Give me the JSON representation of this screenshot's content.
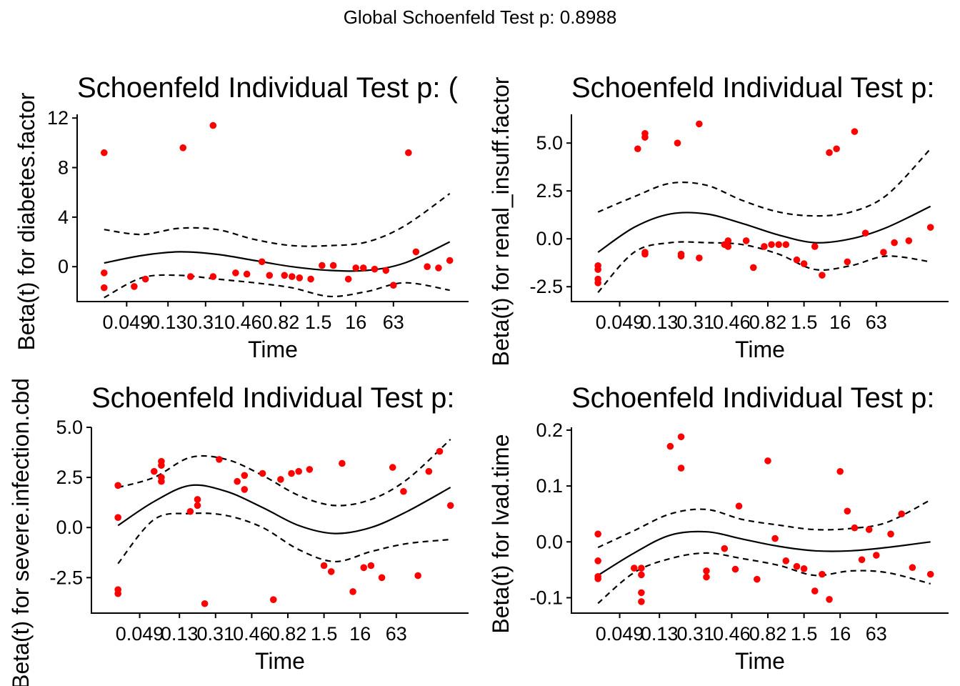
{
  "global_title": "Global Schoenfeld Test p: 0.8988",
  "colors": {
    "points": "#ff0000",
    "lines": "#000000",
    "background": "#ffffff"
  },
  "chart_data": [
    {
      "type": "scatter",
      "title": "Schoenfeld Individual Test p: (",
      "xlabel": "Time",
      "ylabel": "Beta(t) for diabetes.factor",
      "x_tick_labels": [
        "0.049",
        "0.13",
        "0.31",
        "0.46",
        "0.82",
        "1.5",
        "16",
        "63"
      ],
      "y_ticks": [
        0,
        4,
        8,
        12
      ],
      "y_tick_labels": [
        "0",
        "4",
        "8",
        "12"
      ],
      "ylim": [
        -2.7,
        12.3
      ],
      "points": [
        [
          0.3,
          9.2
        ],
        [
          0.3,
          -0.5
        ],
        [
          0.3,
          -1.7
        ],
        [
          1.1,
          -1.6
        ],
        [
          1.4,
          -1.0
        ],
        [
          2.4,
          9.6
        ],
        [
          2.6,
          -0.8
        ],
        [
          3.2,
          11.4
        ],
        [
          3.2,
          -0.8
        ],
        [
          3.8,
          -0.5
        ],
        [
          4.1,
          -0.6
        ],
        [
          4.5,
          0.4
        ],
        [
          4.7,
          -0.7
        ],
        [
          5.1,
          -0.7
        ],
        [
          5.3,
          -0.8
        ],
        [
          5.5,
          -0.9
        ],
        [
          5.8,
          -1.0
        ],
        [
          6.1,
          0.1
        ],
        [
          6.4,
          0.1
        ],
        [
          6.8,
          -1.0
        ],
        [
          7.0,
          -0.1
        ],
        [
          7.2,
          -0.1
        ],
        [
          7.5,
          -0.2
        ],
        [
          7.8,
          -0.3
        ],
        [
          8.0,
          -1.5
        ],
        [
          8.4,
          9.2
        ],
        [
          8.6,
          1.2
        ],
        [
          8.9,
          0.0
        ],
        [
          9.2,
          -0.1
        ],
        [
          9.5,
          0.5
        ]
      ],
      "fit": [
        [
          0.3,
          0.3
        ],
        [
          1.3,
          0.9
        ],
        [
          2.3,
          1.2
        ],
        [
          3.3,
          1.0
        ],
        [
          4.3,
          0.5
        ],
        [
          5.3,
          0.0
        ],
        [
          6.3,
          -0.3
        ],
        [
          7.3,
          -0.3
        ],
        [
          8.3,
          0.3
        ],
        [
          9.5,
          2.0
        ]
      ],
      "upper": [
        [
          0.3,
          3.0
        ],
        [
          1.3,
          2.6
        ],
        [
          2.3,
          3.1
        ],
        [
          3.3,
          3.0
        ],
        [
          4.3,
          2.2
        ],
        [
          5.3,
          1.7
        ],
        [
          6.3,
          1.7
        ],
        [
          7.3,
          2.0
        ],
        [
          8.3,
          3.3
        ],
        [
          9.5,
          5.9
        ]
      ],
      "lower": [
        [
          0.3,
          -2.5
        ],
        [
          1.3,
          -0.9
        ],
        [
          2.3,
          -0.7
        ],
        [
          3.3,
          -1.0
        ],
        [
          4.3,
          -1.3
        ],
        [
          5.3,
          -1.7
        ],
        [
          6.3,
          -2.4
        ],
        [
          7.3,
          -2.0
        ],
        [
          8.3,
          -1.3
        ],
        [
          9.5,
          -1.9
        ]
      ]
    },
    {
      "type": "scatter",
      "title": "Schoenfeld Individual Test p:",
      "xlabel": "Time",
      "ylabel": "Beta(t) for renal_insuff.factor",
      "x_tick_labels": [
        "0.049",
        "0.13",
        "0.31",
        "0.46",
        "0.82",
        "1.5",
        "16",
        "63"
      ],
      "y_ticks": [
        -2.5,
        0,
        2.5,
        5
      ],
      "y_tick_labels": [
        "-2.5",
        "0.0",
        "2.5",
        "5.0"
      ],
      "ylim": [
        -3.2,
        6.5
      ],
      "points": [
        [
          0.3,
          -1.4
        ],
        [
          0.3,
          -1.6
        ],
        [
          0.3,
          -2.1
        ],
        [
          0.3,
          -2.3
        ],
        [
          1.4,
          4.7
        ],
        [
          1.6,
          5.5
        ],
        [
          1.6,
          5.3
        ],
        [
          1.6,
          -0.7
        ],
        [
          1.6,
          -0.8
        ],
        [
          2.5,
          5.0
        ],
        [
          2.6,
          -0.8
        ],
        [
          2.6,
          -0.9
        ],
        [
          3.1,
          6.0
        ],
        [
          3.1,
          -1.0
        ],
        [
          3.8,
          -0.3
        ],
        [
          3.9,
          -0.1
        ],
        [
          3.9,
          -0.4
        ],
        [
          4.4,
          -0.1
        ],
        [
          4.6,
          -1.5
        ],
        [
          4.9,
          -0.4
        ],
        [
          5.1,
          -0.3
        ],
        [
          5.3,
          -0.3
        ],
        [
          5.5,
          -0.3
        ],
        [
          5.8,
          -1.1
        ],
        [
          6.0,
          -1.3
        ],
        [
          6.3,
          -0.4
        ],
        [
          6.5,
          -1.9
        ],
        [
          6.7,
          4.5
        ],
        [
          6.9,
          4.7
        ],
        [
          7.2,
          -1.2
        ],
        [
          7.4,
          5.6
        ],
        [
          7.7,
          0.3
        ],
        [
          8.2,
          -0.7
        ],
        [
          8.5,
          -0.2
        ],
        [
          8.9,
          -0.1
        ],
        [
          9.5,
          0.6
        ]
      ],
      "fit": [
        [
          0.3,
          -0.7
        ],
        [
          1.3,
          0.6
        ],
        [
          2.3,
          1.3
        ],
        [
          3.3,
          1.3
        ],
        [
          4.3,
          0.8
        ],
        [
          5.3,
          0.2
        ],
        [
          6.3,
          -0.2
        ],
        [
          7.3,
          0.0
        ],
        [
          8.3,
          0.6
        ],
        [
          9.5,
          1.7
        ]
      ],
      "upper": [
        [
          0.3,
          1.4
        ],
        [
          1.3,
          2.2
        ],
        [
          2.3,
          2.9
        ],
        [
          3.3,
          2.8
        ],
        [
          4.3,
          2.0
        ],
        [
          5.3,
          1.4
        ],
        [
          6.3,
          1.2
        ],
        [
          7.3,
          1.4
        ],
        [
          8.3,
          2.3
        ],
        [
          9.5,
          4.7
        ]
      ],
      "lower": [
        [
          0.3,
          -2.8
        ],
        [
          1.3,
          -0.7
        ],
        [
          2.3,
          -0.2
        ],
        [
          3.3,
          -0.2
        ],
        [
          4.3,
          -0.3
        ],
        [
          5.3,
          -0.8
        ],
        [
          6.3,
          -1.6
        ],
        [
          7.3,
          -1.4
        ],
        [
          8.3,
          -0.9
        ],
        [
          9.5,
          -1.2
        ]
      ]
    },
    {
      "type": "scatter",
      "title": "Schoenfeld Individual Test p:",
      "xlabel": "Time",
      "ylabel": "Beta(t) for severe.infection.cbd",
      "x_tick_labels": [
        "0.049",
        "0.13",
        "0.31",
        "0.46",
        "0.82",
        "1.5",
        "16",
        "63"
      ],
      "y_ticks": [
        -2.5,
        0,
        2.5,
        5
      ],
      "y_tick_labels": [
        "-2.5",
        "0.0",
        "2.5",
        "5.0"
      ],
      "ylim": [
        -4.2,
        5.0
      ],
      "points": [
        [
          0.3,
          2.1
        ],
        [
          0.3,
          0.5
        ],
        [
          0.3,
          -3.1
        ],
        [
          0.3,
          -3.3
        ],
        [
          1.3,
          2.8
        ],
        [
          1.5,
          3.3
        ],
        [
          1.5,
          3.1
        ],
        [
          1.5,
          2.5
        ],
        [
          1.5,
          2.3
        ],
        [
          2.3,
          0.8
        ],
        [
          2.5,
          1.4
        ],
        [
          2.5,
          1.1
        ],
        [
          2.7,
          -3.8
        ],
        [
          3.1,
          3.4
        ],
        [
          3.6,
          2.3
        ],
        [
          3.8,
          2.6
        ],
        [
          3.8,
          1.9
        ],
        [
          4.3,
          2.7
        ],
        [
          4.6,
          -3.6
        ],
        [
          4.8,
          2.4
        ],
        [
          5.1,
          2.7
        ],
        [
          5.3,
          2.8
        ],
        [
          5.6,
          2.9
        ],
        [
          6.0,
          -1.9
        ],
        [
          6.2,
          -2.2
        ],
        [
          6.5,
          3.2
        ],
        [
          6.8,
          -3.2
        ],
        [
          7.1,
          -2.0
        ],
        [
          7.3,
          -1.9
        ],
        [
          7.6,
          -2.5
        ],
        [
          7.9,
          3.0
        ],
        [
          8.2,
          1.8
        ],
        [
          8.6,
          -2.4
        ],
        [
          8.9,
          2.8
        ],
        [
          9.2,
          3.8
        ],
        [
          9.5,
          1.1
        ]
      ],
      "fit": [
        [
          0.3,
          0.1
        ],
        [
          1.3,
          1.3
        ],
        [
          2.3,
          2.1
        ],
        [
          3.3,
          1.8
        ],
        [
          4.3,
          1.0
        ],
        [
          5.3,
          0.1
        ],
        [
          6.3,
          -0.3
        ],
        [
          7.3,
          0.0
        ],
        [
          8.3,
          0.8
        ],
        [
          9.5,
          2.0
        ]
      ],
      "upper": [
        [
          0.3,
          2.0
        ],
        [
          1.3,
          2.5
        ],
        [
          2.3,
          3.5
        ],
        [
          3.3,
          3.4
        ],
        [
          4.3,
          2.6
        ],
        [
          5.3,
          1.6
        ],
        [
          6.3,
          1.1
        ],
        [
          7.3,
          1.4
        ],
        [
          8.3,
          2.4
        ],
        [
          9.5,
          4.4
        ]
      ],
      "lower": [
        [
          0.3,
          -1.8
        ],
        [
          1.3,
          0.4
        ],
        [
          2.3,
          0.7
        ],
        [
          3.3,
          0.6
        ],
        [
          4.3,
          0.0
        ],
        [
          5.3,
          -1.1
        ],
        [
          6.3,
          -1.7
        ],
        [
          7.3,
          -1.2
        ],
        [
          8.3,
          -0.8
        ],
        [
          9.5,
          -0.6
        ]
      ]
    },
    {
      "type": "scatter",
      "title": "Schoenfeld Individual Test p:",
      "xlabel": "Time",
      "ylabel": "Beta(t) for lvad.time",
      "x_tick_labels": [
        "0.049",
        "0.13",
        "0.31",
        "0.46",
        "0.82",
        "1.5",
        "16",
        "63"
      ],
      "y_ticks": [
        -0.1,
        0,
        0.1,
        0.2
      ],
      "y_tick_labels": [
        "-0.1",
        "0.0",
        "0.1",
        "0.2"
      ],
      "ylim": [
        -0.125,
        0.205
      ],
      "points": [
        [
          0.3,
          0.014
        ],
        [
          0.3,
          -0.034
        ],
        [
          0.3,
          -0.062
        ],
        [
          0.3,
          -0.066
        ],
        [
          1.3,
          -0.047
        ],
        [
          1.5,
          -0.047
        ],
        [
          1.5,
          -0.059
        ],
        [
          1.5,
          -0.091
        ],
        [
          1.5,
          -0.107
        ],
        [
          2.3,
          0.171
        ],
        [
          2.6,
          0.188
        ],
        [
          2.6,
          0.132
        ],
        [
          3.3,
          -0.052
        ],
        [
          3.3,
          -0.063
        ],
        [
          3.8,
          -0.012
        ],
        [
          4.1,
          -0.049
        ],
        [
          4.2,
          0.064
        ],
        [
          4.7,
          -0.067
        ],
        [
          5.0,
          0.145
        ],
        [
          5.2,
          0.006
        ],
        [
          5.5,
          -0.034
        ],
        [
          5.8,
          -0.044
        ],
        [
          6.0,
          -0.048
        ],
        [
          6.3,
          -0.088
        ],
        [
          6.5,
          -0.058
        ],
        [
          6.7,
          -0.103
        ],
        [
          7.0,
          0.126
        ],
        [
          7.2,
          0.055
        ],
        [
          7.4,
          0.025
        ],
        [
          7.6,
          -0.032
        ],
        [
          7.8,
          0.022
        ],
        [
          8.0,
          -0.024
        ],
        [
          8.4,
          0.014
        ],
        [
          8.7,
          0.05
        ],
        [
          9.0,
          -0.046
        ],
        [
          9.5,
          -0.058
        ]
      ],
      "fit": [
        [
          0.3,
          -0.06
        ],
        [
          1.3,
          -0.02
        ],
        [
          2.3,
          0.012
        ],
        [
          3.3,
          0.018
        ],
        [
          4.3,
          0.005
        ],
        [
          5.3,
          -0.008
        ],
        [
          6.3,
          -0.016
        ],
        [
          7.3,
          -0.016
        ],
        [
          8.3,
          -0.01
        ],
        [
          9.5,
          0.0
        ]
      ],
      "upper": [
        [
          0.3,
          -0.01
        ],
        [
          1.3,
          0.02
        ],
        [
          2.3,
          0.05
        ],
        [
          3.3,
          0.058
        ],
        [
          4.3,
          0.04
        ],
        [
          5.3,
          0.03
        ],
        [
          6.3,
          0.022
        ],
        [
          7.3,
          0.024
        ],
        [
          8.3,
          0.035
        ],
        [
          9.5,
          0.075
        ]
      ],
      "lower": [
        [
          0.3,
          -0.11
        ],
        [
          1.3,
          -0.055
        ],
        [
          2.3,
          -0.03
        ],
        [
          3.3,
          -0.02
        ],
        [
          4.3,
          -0.03
        ],
        [
          5.3,
          -0.042
        ],
        [
          6.3,
          -0.06
        ],
        [
          7.3,
          -0.052
        ],
        [
          8.3,
          -0.055
        ],
        [
          9.5,
          -0.075
        ]
      ]
    }
  ]
}
